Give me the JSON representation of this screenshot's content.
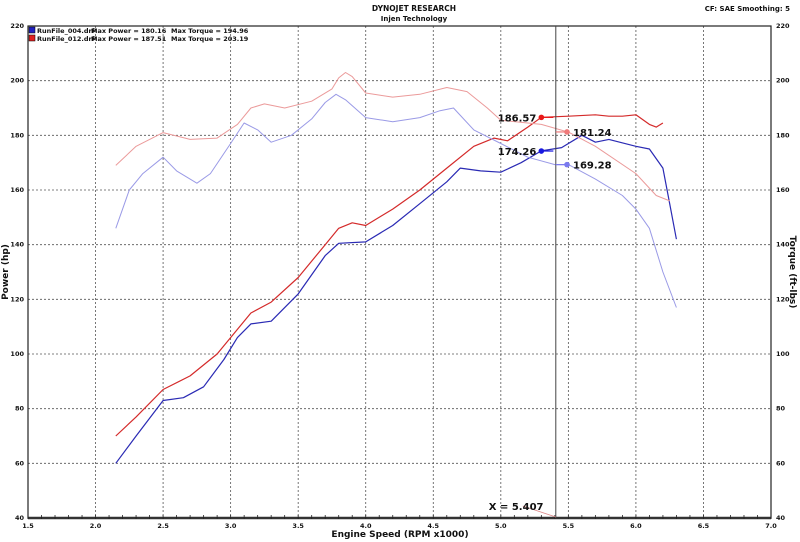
{
  "header": {
    "title": "DYNOJET RESEARCH",
    "subtitle": "Injen Technology",
    "settings": "CF: SAE  Smoothing: 5"
  },
  "legend": [
    {
      "file": "RunFile_004.drf",
      "power": "Max Power = 180.16",
      "torque": "Max Torque = 194.96",
      "color": "#2020c0"
    },
    {
      "file": "RunFile_012.drf",
      "power": "Max Power = 187.51",
      "torque": "Max Torque = 203.19",
      "color": "#e02020"
    }
  ],
  "cursor": {
    "label": "X = 5.407",
    "x": 5.407
  },
  "chart_data": {
    "type": "line",
    "xlabel": "Engine Speed (RPM x1000)",
    "ylabel": "Power (hp)",
    "y2label": "Torque (ft-lbs)",
    "xlim": [
      1.5,
      7.0
    ],
    "ylim": [
      40,
      220
    ],
    "y2lim": [
      40,
      220
    ],
    "grid": true,
    "xticks": [
      "1.5",
      "2.0",
      "2.5",
      "3.0",
      "3.5",
      "4.0",
      "4.5",
      "5.0",
      "5.5",
      "6.0",
      "6.5",
      "7.0"
    ],
    "yticks": [
      "220",
      "200",
      "180",
      "160",
      "140",
      "120",
      "100",
      "80",
      "60",
      "40"
    ],
    "series": [
      {
        "name": "RunFile_012.drf Power",
        "axis": "left",
        "color": "#d42a2a",
        "width": 1.2,
        "x": [
          2.15,
          2.3,
          2.5,
          2.7,
          2.9,
          3.0,
          3.15,
          3.3,
          3.5,
          3.7,
          3.8,
          3.9,
          4.0,
          4.2,
          4.4,
          4.6,
          4.8,
          4.95,
          5.05,
          5.2,
          5.3,
          5.5,
          5.7,
          5.8,
          5.9,
          6.0,
          6.1,
          6.15,
          6.2
        ],
        "y": [
          70,
          77,
          87,
          92,
          100,
          106,
          115,
          119,
          128,
          140,
          146,
          148,
          147,
          153,
          160,
          168,
          176,
          179,
          178,
          183,
          186.6,
          187,
          187.5,
          187,
          187,
          187.5,
          184,
          183,
          184.5
        ]
      },
      {
        "name": "RunFile_004.drf Power",
        "axis": "left",
        "color": "#2a2ab4",
        "width": 1.2,
        "x": [
          2.15,
          2.3,
          2.5,
          2.65,
          2.8,
          2.95,
          3.05,
          3.15,
          3.3,
          3.5,
          3.7,
          3.8,
          4.0,
          4.2,
          4.4,
          4.6,
          4.7,
          4.85,
          5.0,
          5.15,
          5.3,
          5.45,
          5.6,
          5.7,
          5.8,
          6.0,
          6.1,
          6.2,
          6.25,
          6.3
        ],
        "y": [
          60,
          70,
          83,
          84,
          88,
          98,
          106,
          111,
          112,
          122,
          136,
          140.5,
          141,
          147,
          155,
          163,
          168,
          167,
          166.5,
          170,
          174.3,
          175.5,
          180,
          177.5,
          178.5,
          176,
          175,
          168,
          155,
          142
        ]
      },
      {
        "name": "RunFile_012.drf Torque",
        "axis": "right",
        "color": "#eb9a9a",
        "width": 1,
        "x": [
          2.15,
          2.3,
          2.5,
          2.7,
          2.9,
          3.05,
          3.15,
          3.25,
          3.4,
          3.6,
          3.75,
          3.8,
          3.85,
          3.9,
          4.0,
          4.2,
          4.4,
          4.6,
          4.75,
          4.9,
          5.0,
          5.3,
          5.5,
          5.7,
          6.0,
          6.15,
          6.25
        ],
        "y": [
          169,
          176,
          181,
          178.5,
          179,
          184,
          190,
          191.5,
          190,
          192.5,
          197,
          201,
          203,
          201.5,
          195.5,
          194,
          195,
          197.5,
          196,
          190,
          185.5,
          184,
          181.2,
          176,
          166,
          158,
          156
        ]
      },
      {
        "name": "RunFile_004.drf Torque",
        "axis": "right",
        "color": "#9a9ae6",
        "width": 1,
        "x": [
          2.15,
          2.25,
          2.35,
          2.5,
          2.6,
          2.75,
          2.85,
          3.0,
          3.1,
          3.2,
          3.3,
          3.45,
          3.6,
          3.7,
          3.78,
          3.85,
          4.0,
          4.2,
          4.4,
          4.55,
          4.65,
          4.8,
          5.0,
          5.2,
          5.4,
          5.5,
          5.7,
          5.9,
          6.0,
          6.1,
          6.2,
          6.3
        ],
        "y": [
          146,
          160,
          166,
          172,
          167,
          162.5,
          166,
          177,
          184.5,
          182,
          177.5,
          180,
          186,
          192,
          195,
          193,
          186.5,
          185,
          186.5,
          189,
          190,
          182,
          177,
          172,
          169.3,
          169.3,
          164,
          158,
          153,
          146,
          130,
          117
        ]
      }
    ],
    "markers": [
      {
        "label": "186.57",
        "x": 5.3,
        "y": 186.57,
        "color": "#e81818",
        "side": "left"
      },
      {
        "label": "174.26",
        "x": 5.3,
        "y": 174.26,
        "color": "#1818e0",
        "side": "left"
      },
      {
        "label": "181.24",
        "x": 5.49,
        "y": 181.24,
        "color": "#ef7a7a",
        "side": "right"
      },
      {
        "label": "169.28",
        "x": 5.49,
        "y": 169.28,
        "color": "#7a7aef",
        "side": "right"
      }
    ]
  }
}
